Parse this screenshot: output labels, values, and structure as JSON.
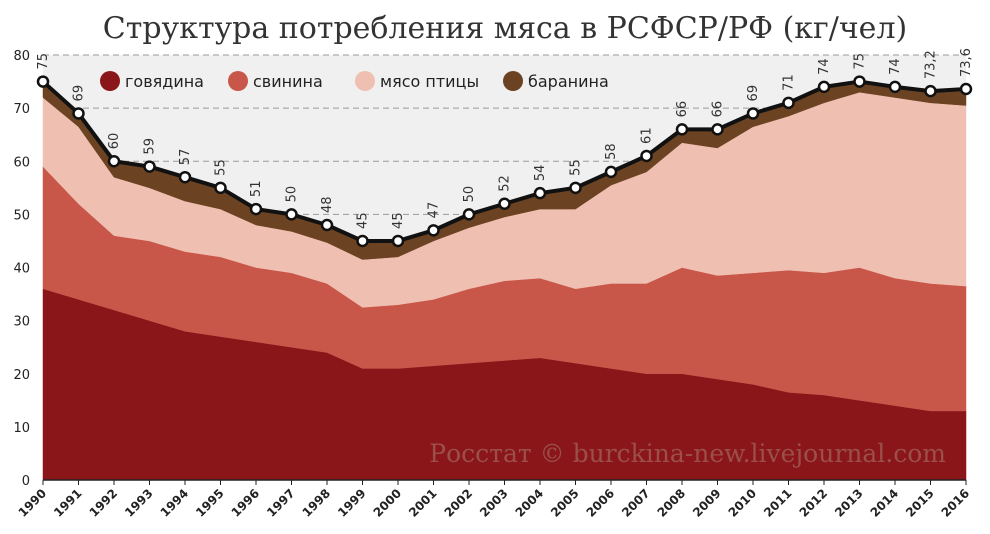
{
  "chart_data": {
    "type": "area",
    "title": "Структура потребления мяса в РСФСР/РФ (кг/чел)",
    "categories": [
      "1990",
      "1991",
      "1992",
      "1993",
      "1994",
      "1995",
      "1996",
      "1997",
      "1998",
      "1999",
      "2000",
      "2001",
      "2002",
      "2003",
      "2004",
      "2005",
      "2006",
      "2007",
      "2008",
      "2009",
      "2010",
      "2011",
      "2012",
      "2013",
      "2014",
      "2015",
      "2016"
    ],
    "series": [
      {
        "name": "говядина",
        "color": "#8b1619",
        "values": [
          36,
          34,
          32,
          30,
          28,
          27,
          26,
          25,
          24,
          21,
          21,
          21.5,
          22,
          22.5,
          23,
          22,
          21,
          20,
          20,
          19,
          18,
          16.5,
          16,
          15,
          14,
          13,
          13
        ]
      },
      {
        "name": "свинина",
        "color": "#c8574a",
        "values": [
          23,
          18,
          14,
          15,
          15,
          15,
          14,
          14,
          13,
          11.5,
          12,
          12.5,
          14,
          15,
          15,
          14,
          16,
          17,
          20,
          19.5,
          21,
          23,
          23,
          25,
          24,
          24,
          23.5
        ]
      },
      {
        "name": "мясо птицы",
        "color": "#efbfb1",
        "values": [
          13,
          14.5,
          11,
          10,
          9.5,
          9,
          8,
          7.8,
          7.7,
          9,
          9,
          11,
          11.5,
          12,
          13,
          15,
          18.5,
          21,
          23.5,
          24,
          27.5,
          29,
          32,
          33,
          34,
          34,
          34
        ]
      },
      {
        "name": "баранина",
        "color": "#6b4322",
        "values": [
          3,
          2.5,
          3,
          4,
          4.5,
          4,
          3,
          3.2,
          3.3,
          3.5,
          3,
          2,
          2.5,
          2.5,
          3,
          4,
          2.5,
          3,
          2.5,
          3.5,
          2.5,
          2.5,
          3,
          2,
          2,
          2.2,
          3.1
        ]
      }
    ],
    "total_labels": [
      "75",
      "69",
      "60",
      "59",
      "57",
      "55",
      "51",
      "50",
      "48",
      "45",
      "45",
      "47",
      "50",
      "52",
      "54",
      "55",
      "58",
      "61",
      "66",
      "66",
      "69",
      "71",
      "74",
      "75",
      "74",
      "73,2",
      "73,6"
    ],
    "total_values": [
      75,
      69,
      60,
      59,
      57,
      55,
      51,
      50,
      48,
      45,
      45,
      47,
      50,
      52,
      54,
      55,
      58,
      61,
      66,
      66,
      69,
      71,
      74,
      75,
      74,
      73.2,
      73.6
    ],
    "y_ticks": [
      "0",
      "10",
      "20",
      "30",
      "40",
      "50",
      "60",
      "70",
      "80"
    ],
    "ylim": [
      0,
      80
    ],
    "legend_position": "top-left",
    "grid": true,
    "watermark": "Росстат © burckina-new.livejournal.com"
  }
}
